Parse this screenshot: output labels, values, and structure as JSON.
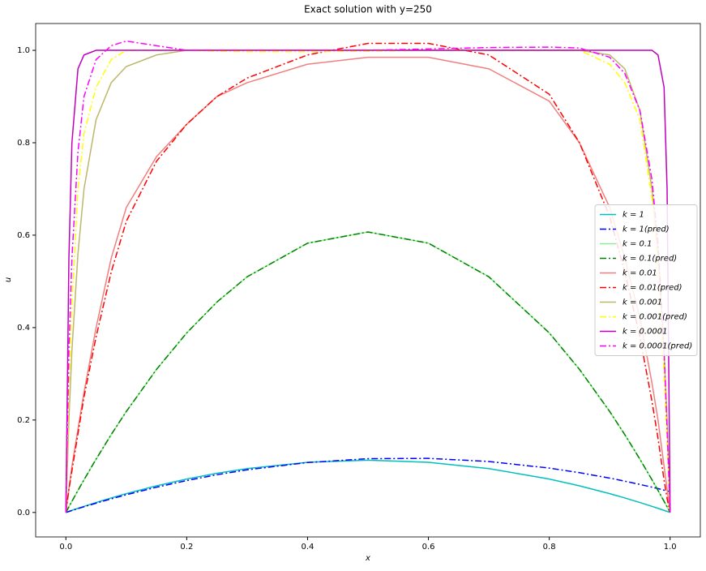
{
  "chart_data": {
    "type": "line",
    "title": "Exact solution with y=250",
    "x_label": "x",
    "y_label": "u",
    "x": [
      0,
      0.005,
      0.01,
      0.02,
      0.03,
      0.05,
      0.075,
      0.1,
      0.15,
      0.2,
      0.25,
      0.3,
      0.4,
      0.5,
      0.6,
      0.7,
      0.8,
      0.85,
      0.9,
      0.925,
      0.95,
      0.97,
      0.98,
      0.99,
      0.995,
      1
    ],
    "xlim": [
      -0.05,
      1.05
    ],
    "ylim": [
      -0.053,
      1.058
    ],
    "xticks": [
      {
        "value": 0,
        "label": "0.0"
      },
      {
        "value": 0.2,
        "label": "0.2"
      },
      {
        "value": 0.4,
        "label": "0.4"
      },
      {
        "value": 0.6,
        "label": "0.6"
      },
      {
        "value": 0.8,
        "label": "0.8"
      },
      {
        "value": 1,
        "label": "1.0"
      }
    ],
    "yticks": [
      {
        "value": 0,
        "label": "0.0"
      },
      {
        "value": 0.2,
        "label": "0.2"
      },
      {
        "value": 0.4,
        "label": "0.4"
      },
      {
        "value": 0.6,
        "label": "0.6"
      },
      {
        "value": 0.8,
        "label": "0.8"
      },
      {
        "value": 1,
        "label": "1.0"
      }
    ],
    "legend": "center right",
    "series": [
      {
        "name": "k = 1",
        "color": "#00bfbf",
        "linestyle": "solid",
        "values": [
          0,
          0.0023,
          0.0045,
          0.0089,
          0.0132,
          0.0215,
          0.0314,
          0.0407,
          0.0576,
          0.0723,
          0.0848,
          0.0949,
          0.1085,
          0.113,
          0.1085,
          0.0949,
          0.0723,
          0.0576,
          0.0407,
          0.0314,
          0.0215,
          0.0132,
          0.0089,
          0.0045,
          0.0023,
          0
        ]
      },
      {
        "name": "k = 1(pred)",
        "color": "#0000ff",
        "linestyle": "dashdot",
        "values": [
          0,
          0.0021,
          0.0042,
          0.0083,
          0.0123,
          0.0201,
          0.0294,
          0.0383,
          0.0546,
          0.069,
          0.0816,
          0.0923,
          0.108,
          0.1163,
          0.117,
          0.1103,
          0.096,
          0.086,
          0.0743,
          0.0677,
          0.0606,
          0.0547,
          0.0516,
          0.0482,
          0.0466,
          0.045
        ]
      },
      {
        "name": "k = 0.1",
        "color": "#90ee90",
        "linestyle": "solid",
        "values": [
          0,
          0.0121,
          0.024,
          0.0476,
          0.0707,
          0.1153,
          0.1684,
          0.2185,
          0.3096,
          0.3885,
          0.4553,
          0.5099,
          0.5827,
          0.607,
          0.5827,
          0.5099,
          0.3885,
          0.3096,
          0.2185,
          0.1684,
          0.1153,
          0.0707,
          0.0476,
          0.024,
          0.0121,
          0
        ]
      },
      {
        "name": "k = 0.1(pred)",
        "color": "#008000",
        "linestyle": "dashdot",
        "values": [
          0,
          0.0121,
          0.024,
          0.0476,
          0.0707,
          0.1153,
          0.1684,
          0.2185,
          0.3096,
          0.3885,
          0.4553,
          0.5099,
          0.5827,
          0.607,
          0.5827,
          0.5099,
          0.3885,
          0.3096,
          0.2185,
          0.1684,
          0.1153,
          0.0707,
          0.0476,
          0.024,
          0.0121,
          0
        ]
      },
      {
        "name": "k = 0.01",
        "color": "#f08080",
        "linestyle": "solid",
        "values": [
          0,
          0.05,
          0.1,
          0.18,
          0.26,
          0.4,
          0.55,
          0.66,
          0.77,
          0.84,
          0.9,
          0.93,
          0.97,
          0.985,
          0.985,
          0.96,
          0.89,
          0.8,
          0.66,
          0.55,
          0.42,
          0.28,
          0.2,
          0.1,
          0.05,
          0
        ]
      },
      {
        "name": "k = 0.01(pred)",
        "color": "#ff0000",
        "linestyle": "dashdot",
        "values": [
          0,
          0.05,
          0.09,
          0.17,
          0.25,
          0.38,
          0.52,
          0.63,
          0.76,
          0.84,
          0.9,
          0.94,
          0.99,
          1.015,
          1.015,
          0.99,
          0.905,
          0.8,
          0.64,
          0.52,
          0.38,
          0.24,
          0.16,
          0.07,
          0.03,
          0
        ]
      },
      {
        "name": "k = 0.001",
        "color": "#bdb76b",
        "linestyle": "solid",
        "values": [
          0,
          0.2,
          0.35,
          0.56,
          0.7,
          0.85,
          0.93,
          0.965,
          0.99,
          1,
          1,
          1,
          1,
          1,
          1,
          1,
          1,
          1,
          0.99,
          0.96,
          0.87,
          0.7,
          0.56,
          0.35,
          0.2,
          0
        ]
      },
      {
        "name": "k = 0.001(pred)",
        "color": "#ffff00",
        "linestyle": "dashdot",
        "values": [
          0,
          0.25,
          0.45,
          0.7,
          0.82,
          0.92,
          0.98,
          1,
          1,
          1,
          0.998,
          0.997,
          0.997,
          0.998,
          1,
          1,
          1,
          1,
          0.97,
          0.93,
          0.85,
          0.68,
          0.53,
          0.3,
          0.15,
          0
        ]
      },
      {
        "name": "k = 0.0001",
        "color": "#bf00bf",
        "linestyle": "solid",
        "values": [
          0,
          0.55,
          0.8,
          0.96,
          0.99,
          1,
          1,
          1,
          1,
          1,
          1,
          1,
          1,
          1,
          1,
          1,
          1,
          1,
          1,
          1,
          1,
          1,
          0.99,
          0.92,
          0.7,
          0
        ]
      },
      {
        "name": "k = 0.0001(pred)",
        "color": "#ff00ff",
        "linestyle": "dashdot",
        "values": [
          0,
          0.35,
          0.55,
          0.78,
          0.9,
          0.98,
          1.01,
          1.02,
          1.01,
          1,
          1,
          1,
          1,
          1,
          1.003,
          1.006,
          1.007,
          1.005,
          0.985,
          0.95,
          0.87,
          0.72,
          0.58,
          0.35,
          0.18,
          0
        ]
      }
    ]
  }
}
